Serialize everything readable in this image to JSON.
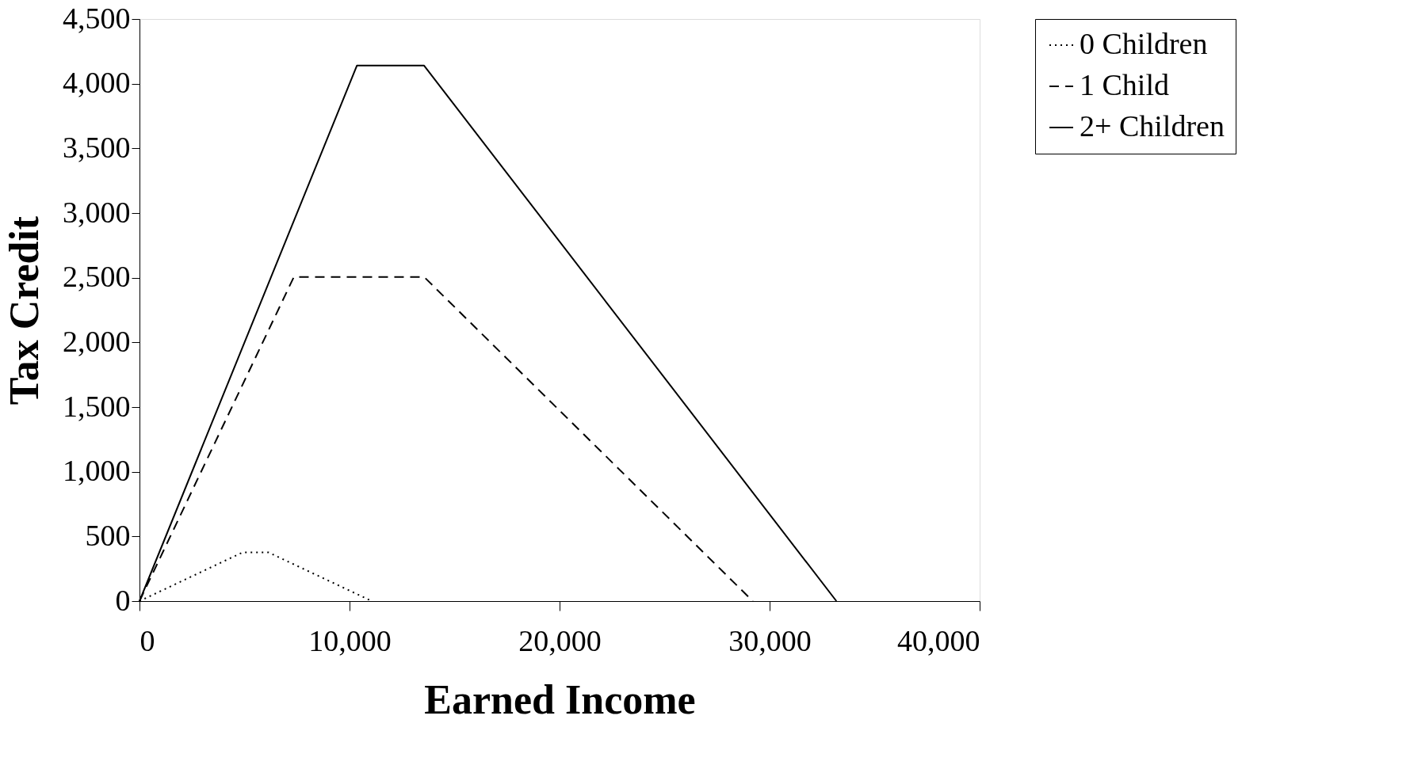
{
  "chart_data": {
    "type": "line",
    "xlabel": "Earned Income",
    "ylabel": "Tax Credit",
    "xlim": [
      0,
      40000
    ],
    "xticks": [
      {
        "value": 0,
        "label": "0"
      },
      {
        "value": 10000,
        "label": "10,000"
      },
      {
        "value": 20000,
        "label": "20,000"
      },
      {
        "value": 30000,
        "label": "30,000"
      },
      {
        "value": 40000,
        "label": "40,000"
      }
    ],
    "ylim": [
      0,
      4500
    ],
    "yticks": [
      {
        "value": 0,
        "label": "0"
      },
      {
        "value": 500,
        "label": "500"
      },
      {
        "value": 1000,
        "label": "1,000"
      },
      {
        "value": 1500,
        "label": "1,500"
      },
      {
        "value": 2000,
        "label": "2,000"
      },
      {
        "value": 2500,
        "label": "2,500"
      },
      {
        "value": 3000,
        "label": "3,000"
      },
      {
        "value": 3500,
        "label": "3,500"
      },
      {
        "value": 4000,
        "label": "4,000"
      },
      {
        "value": 4500,
        "label": "4,500"
      }
    ],
    "grid": false,
    "legend": "right",
    "marker": "none",
    "series": [
      {
        "name": "0 Children",
        "color": "#000000",
        "line_style": "dotted",
        "x": [
          0,
          4900,
          6150,
          11060
        ],
        "values": [
          0,
          376,
          376,
          0
        ]
      },
      {
        "name": "1 Child",
        "color": "#000000",
        "line_style": "dashed",
        "x": [
          0,
          7350,
          13550,
          29200
        ],
        "values": [
          0,
          2506,
          2506,
          0
        ]
      },
      {
        "name": "2+ Children",
        "color": "#000000",
        "line_style": "solid",
        "x": [
          0,
          10350,
          13550,
          33180
        ],
        "values": [
          0,
          4140,
          4140,
          0
        ]
      }
    ]
  }
}
